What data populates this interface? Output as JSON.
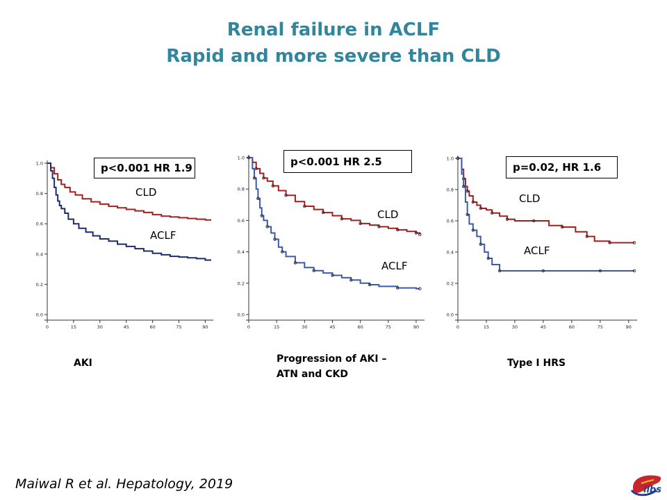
{
  "slide": {
    "title_line1": "Renal failure in ACLF",
    "title_line2": "Rapid and more severe than CLD",
    "citation": "Maiwal R et al. Hepatology,  2019",
    "logo_text": "ilbs"
  },
  "colors": {
    "cld": "#a31f1f",
    "aclf": "#1f2a6b",
    "aclf_panel23": "#3b5aa8",
    "title": "#31859c"
  },
  "chart_data": [
    {
      "type": "line",
      "caption": "AKI",
      "stat": "p<0.001 HR 1.9",
      "xlim": [
        0,
        93
      ],
      "ylim": [
        0,
        1.0
      ],
      "x_ticks": [
        "0",
        "15",
        "30",
        "45",
        "60",
        "75",
        "90"
      ],
      "y_ticks": [
        "0.0",
        "0.2",
        "0.4",
        "0.6",
        "0.8",
        "1.0"
      ],
      "series": [
        {
          "name": "CLD",
          "x": [
            0,
            2,
            4,
            6,
            8,
            10,
            13,
            16,
            20,
            25,
            30,
            35,
            40,
            45,
            50,
            55,
            60,
            65,
            70,
            75,
            80,
            85,
            90,
            93
          ],
          "y": [
            1.0,
            0.97,
            0.93,
            0.89,
            0.86,
            0.84,
            0.81,
            0.79,
            0.765,
            0.745,
            0.73,
            0.715,
            0.705,
            0.695,
            0.685,
            0.675,
            0.66,
            0.65,
            0.645,
            0.64,
            0.635,
            0.63,
            0.625,
            0.62
          ]
        },
        {
          "name": "ACLF",
          "x": [
            0,
            2,
            3,
            4,
            5,
            6,
            7,
            8,
            10,
            12,
            15,
            18,
            22,
            26,
            30,
            35,
            40,
            45,
            50,
            55,
            60,
            65,
            70,
            75,
            80,
            85,
            90,
            93
          ],
          "y": [
            1.0,
            0.95,
            0.9,
            0.84,
            0.79,
            0.75,
            0.72,
            0.7,
            0.67,
            0.63,
            0.6,
            0.57,
            0.545,
            0.52,
            0.5,
            0.485,
            0.465,
            0.45,
            0.435,
            0.42,
            0.405,
            0.395,
            0.385,
            0.38,
            0.375,
            0.37,
            0.36,
            0.355
          ]
        }
      ]
    },
    {
      "type": "line",
      "caption": "Progression of AKI –\nATN and CKD",
      "stat": "p<0.001 HR 2.5",
      "xlim": [
        0,
        93
      ],
      "ylim": [
        0,
        1.0
      ],
      "x_ticks": [
        "0",
        "15",
        "30",
        "45",
        "60",
        "75",
        "90"
      ],
      "y_ticks": [
        "0.0",
        "0.2",
        "0.4",
        "0.6",
        "0.8",
        "1.0"
      ],
      "series": [
        {
          "name": "CLD",
          "x": [
            0,
            2,
            4,
            6,
            8,
            10,
            13,
            16,
            20,
            25,
            30,
            35,
            40,
            45,
            50,
            55,
            60,
            65,
            70,
            75,
            80,
            85,
            90,
            92
          ],
          "y": [
            1.0,
            0.97,
            0.93,
            0.9,
            0.87,
            0.85,
            0.82,
            0.79,
            0.76,
            0.72,
            0.69,
            0.67,
            0.65,
            0.63,
            0.61,
            0.6,
            0.58,
            0.57,
            0.56,
            0.55,
            0.54,
            0.53,
            0.52,
            0.51
          ]
        },
        {
          "name": "ACLF",
          "x": [
            0,
            2,
            3,
            4,
            5,
            6,
            7,
            8,
            10,
            12,
            14,
            16,
            18,
            20,
            25,
            30,
            35,
            40,
            45,
            50,
            55,
            60,
            65,
            70,
            80,
            90,
            92
          ],
          "y": [
            1.0,
            0.93,
            0.87,
            0.8,
            0.74,
            0.68,
            0.63,
            0.6,
            0.56,
            0.52,
            0.48,
            0.43,
            0.4,
            0.37,
            0.33,
            0.3,
            0.28,
            0.265,
            0.25,
            0.235,
            0.22,
            0.2,
            0.19,
            0.18,
            0.17,
            0.165,
            0.165
          ]
        }
      ]
    },
    {
      "type": "line",
      "caption": "Type I HRS",
      "stat": "p=0.02, HR 1.6",
      "xlim": [
        0,
        93
      ],
      "ylim": [
        0,
        1.0
      ],
      "x_ticks": [
        "0",
        "15",
        "30",
        "45",
        "60",
        "75",
        "90"
      ],
      "y_ticks": [
        "0.0",
        "0.2",
        "0.4",
        "0.6",
        "0.8",
        "1.0"
      ],
      "series": [
        {
          "name": "CLD",
          "x": [
            0,
            2,
            3,
            4,
            5,
            6,
            8,
            10,
            12,
            15,
            18,
            22,
            26,
            30,
            40,
            48,
            55,
            62,
            68,
            72,
            80,
            93
          ],
          "y": [
            1.0,
            0.93,
            0.87,
            0.82,
            0.79,
            0.76,
            0.72,
            0.7,
            0.68,
            0.67,
            0.65,
            0.63,
            0.61,
            0.6,
            0.6,
            0.57,
            0.56,
            0.53,
            0.5,
            0.47,
            0.46,
            0.46
          ]
        },
        {
          "name": "ACLF",
          "x": [
            0,
            2,
            3,
            4,
            5,
            6,
            8,
            10,
            12,
            14,
            16,
            18,
            22,
            30,
            45,
            60,
            75,
            93
          ],
          "y": [
            1.0,
            0.9,
            0.82,
            0.72,
            0.64,
            0.58,
            0.54,
            0.5,
            0.45,
            0.4,
            0.36,
            0.32,
            0.28,
            0.28,
            0.28,
            0.28,
            0.28,
            0.28
          ]
        }
      ]
    }
  ]
}
